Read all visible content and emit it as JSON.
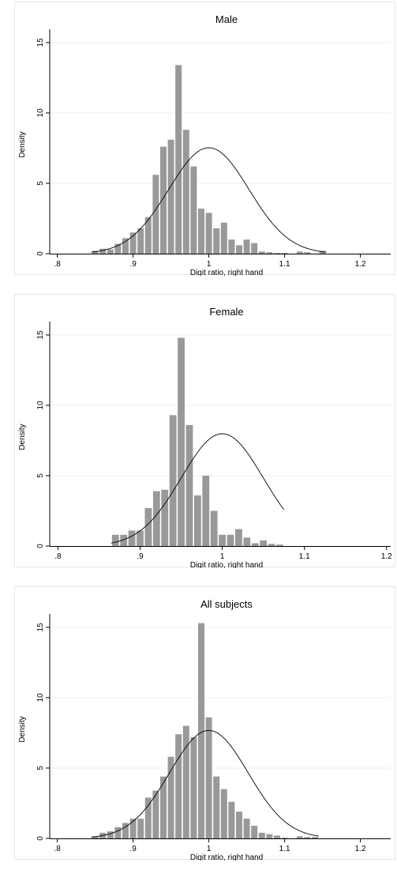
{
  "chart_data": [
    {
      "type": "bar",
      "title": "Male",
      "xlabel": "Digit ratio, right hand",
      "ylabel": "Density",
      "xlim": [
        0.79,
        1.24
      ],
      "ylim": [
        0,
        15.5
      ],
      "xticks": [
        0.8,
        0.9,
        1.0,
        1.1,
        1.2
      ],
      "xtick_labels": [
        ".8",
        ".9",
        "1",
        "1.1",
        "1.2"
      ],
      "yticks": [
        0,
        5,
        10,
        15
      ],
      "ytick_labels": [
        "0",
        "5",
        "10",
        "15"
      ],
      "grid": true,
      "bin_start": 0.845,
      "bin_width": 0.01,
      "values": [
        0.2,
        0.35,
        0.3,
        0.7,
        1.1,
        1.5,
        1.8,
        2.6,
        5.6,
        7.6,
        8.1,
        13.4,
        8.8,
        6.2,
        3.2,
        2.9,
        1.8,
        2.2,
        1.0,
        0.6,
        1.0,
        0.75,
        0.15,
        0.1,
        0.05,
        0.05,
        0.0,
        0.15,
        0.1,
        0.0,
        0.2
      ],
      "normal_overlay": {
        "mean": 1.0,
        "sd": 0.053
      }
    },
    {
      "type": "bar",
      "title": "Female",
      "xlabel": "Digit ratio, right hand",
      "ylabel": "Density",
      "xlim": [
        0.79,
        1.205
      ],
      "ylim": [
        0,
        15.5
      ],
      "xticks": [
        0.8,
        0.9,
        1.0,
        1.1,
        1.2
      ],
      "xtick_labels": [
        ".8",
        ".9",
        "1",
        "1.1",
        "1.2"
      ],
      "yticks": [
        0,
        5,
        10,
        15
      ],
      "ytick_labels": [
        "0",
        "5",
        "10",
        "15"
      ],
      "grid": true,
      "bin_start": 0.865,
      "bin_width": 0.01,
      "values": [
        0.8,
        0.8,
        1.1,
        1.1,
        2.7,
        3.9,
        4.0,
        9.3,
        14.8,
        8.6,
        3.6,
        5.0,
        2.5,
        0.8,
        0.8,
        1.2,
        0.6,
        0.2,
        0.4,
        0.15,
        0.1
      ],
      "normal_overlay": {
        "mean": 1.0,
        "sd": 0.05
      }
    },
    {
      "type": "bar",
      "title": "All subjects",
      "xlabel": "Digit ratio, right hand",
      "ylabel": "Density",
      "xlim": [
        0.79,
        1.24
      ],
      "ylim": [
        0,
        15.5
      ],
      "xticks": [
        0.8,
        0.9,
        1.0,
        1.1,
        1.2
      ],
      "xtick_labels": [
        ".8",
        ".9",
        "1",
        "1.1",
        "1.2"
      ],
      "yticks": [
        0,
        5,
        10,
        15
      ],
      "ytick_labels": [
        "0",
        "5",
        "10",
        "15"
      ],
      "grid": true,
      "bin_start": 0.845,
      "bin_width": 0.01,
      "values": [
        0.15,
        0.4,
        0.5,
        0.8,
        1.1,
        1.4,
        1.4,
        2.9,
        3.4,
        4.4,
        5.8,
        7.4,
        8.0,
        7.2,
        15.3,
        8.6,
        4.4,
        3.5,
        2.6,
        1.9,
        1.4,
        0.9,
        0.4,
        0.3,
        0.2,
        0.05,
        0.0,
        0.15,
        0.1,
        0.1
      ],
      "normal_overlay": {
        "mean": 1.0,
        "sd": 0.052
      }
    }
  ]
}
